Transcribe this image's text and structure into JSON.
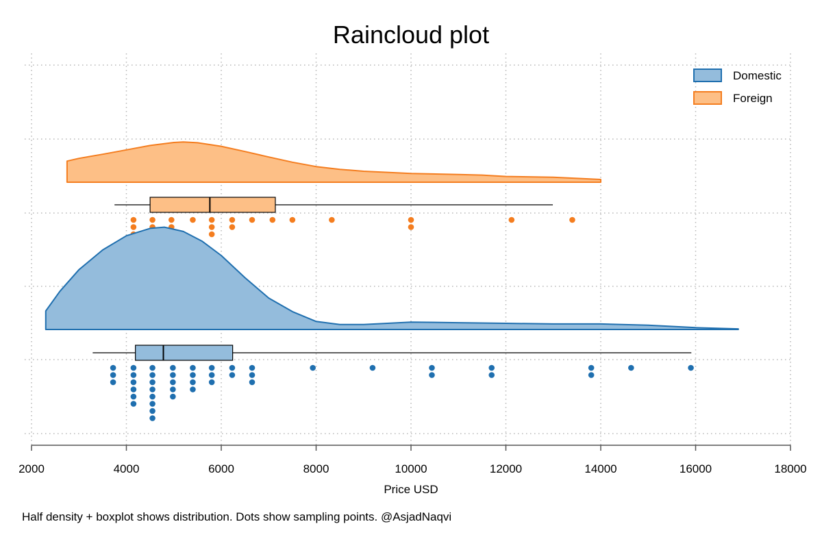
{
  "chart_data": {
    "type": "raincloud",
    "title": "Raincloud plot",
    "xlabel": "Price USD",
    "note": "Half density + boxplot shows distribution. Dots show sampling points. @AsjadNaqvi",
    "xlim": [
      2000,
      18000
    ],
    "x_ticks": [
      2000,
      4000,
      6000,
      8000,
      10000,
      12000,
      14000,
      16000,
      18000
    ],
    "grid": true,
    "legend": {
      "position": "top-right",
      "entries": [
        "Domestic",
        "Foreign"
      ]
    },
    "series": [
      {
        "name": "Foreign",
        "fill_color": "#fdbf86",
        "line_color": "#f47d1f",
        "dot_color": "#f47d1f",
        "density": [
          [
            2750,
            0.0
          ],
          [
            2750,
            0.77
          ],
          [
            3000,
            0.87
          ],
          [
            3500,
            1.02
          ],
          [
            4000,
            1.18
          ],
          [
            4500,
            1.34
          ],
          [
            5000,
            1.45
          ],
          [
            5200,
            1.47
          ],
          [
            5500,
            1.44
          ],
          [
            6000,
            1.31
          ],
          [
            6500,
            1.12
          ],
          [
            7000,
            0.92
          ],
          [
            7500,
            0.73
          ],
          [
            8000,
            0.57
          ],
          [
            8500,
            0.47
          ],
          [
            9000,
            0.4
          ],
          [
            10000,
            0.32
          ],
          [
            11000,
            0.28
          ],
          [
            11500,
            0.26
          ],
          [
            12000,
            0.21
          ],
          [
            13000,
            0.18
          ],
          [
            14000,
            0.1
          ],
          [
            14000,
            0.0
          ]
        ],
        "box": {
          "whisker_low": 3750,
          "q1": 4500,
          "median": 5760,
          "q3": 7140,
          "whisker_high": 12990
        },
        "dots": [
          {
            "x": 4150,
            "n": 3
          },
          {
            "x": 4550,
            "n": 2
          },
          {
            "x": 4950,
            "n": 2
          },
          {
            "x": 5400,
            "n": 1
          },
          {
            "x": 5800,
            "n": 3
          },
          {
            "x": 6230,
            "n": 2
          },
          {
            "x": 6650,
            "n": 1
          },
          {
            "x": 7080,
            "n": 1
          },
          {
            "x": 7500,
            "n": 1
          },
          {
            "x": 8330,
            "n": 1
          },
          {
            "x": 10000,
            "n": 2
          },
          {
            "x": 12120,
            "n": 1
          },
          {
            "x": 13400,
            "n": 1
          }
        ]
      },
      {
        "name": "Domestic",
        "fill_color": "#94bcdc",
        "line_color": "#1f6faf",
        "dot_color": "#1f6faf",
        "density": [
          [
            2300,
            0.0
          ],
          [
            2300,
            0.3
          ],
          [
            2600,
            0.62
          ],
          [
            3000,
            0.97
          ],
          [
            3500,
            1.29
          ],
          [
            4000,
            1.52
          ],
          [
            4500,
            1.64
          ],
          [
            4800,
            1.66
          ],
          [
            5200,
            1.59
          ],
          [
            5600,
            1.43
          ],
          [
            6000,
            1.2
          ],
          [
            6500,
            0.84
          ],
          [
            7000,
            0.51
          ],
          [
            7500,
            0.29
          ],
          [
            8000,
            0.13
          ],
          [
            8500,
            0.08
          ],
          [
            9000,
            0.08
          ],
          [
            10000,
            0.12
          ],
          [
            11000,
            0.11
          ],
          [
            12000,
            0.1
          ],
          [
            13000,
            0.09
          ],
          [
            14000,
            0.09
          ],
          [
            15000,
            0.07
          ],
          [
            16000,
            0.03
          ],
          [
            16900,
            0.01
          ],
          [
            16900,
            0.0
          ]
        ],
        "box": {
          "whisker_low": 3290,
          "q1": 4190,
          "median": 4780,
          "q3": 6240,
          "whisker_high": 15910
        },
        "dots": [
          {
            "x": 3720,
            "n": 3
          },
          {
            "x": 4150,
            "n": 6
          },
          {
            "x": 4550,
            "n": 8
          },
          {
            "x": 4980,
            "n": 5
          },
          {
            "x": 5400,
            "n": 4
          },
          {
            "x": 5800,
            "n": 3
          },
          {
            "x": 6230,
            "n": 2
          },
          {
            "x": 6650,
            "n": 3
          },
          {
            "x": 7930,
            "n": 1
          },
          {
            "x": 9190,
            "n": 1
          },
          {
            "x": 10440,
            "n": 2
          },
          {
            "x": 11700,
            "n": 2
          },
          {
            "x": 13800,
            "n": 2
          },
          {
            "x": 14640,
            "n": 1
          },
          {
            "x": 15900,
            "n": 1
          }
        ]
      }
    ]
  }
}
